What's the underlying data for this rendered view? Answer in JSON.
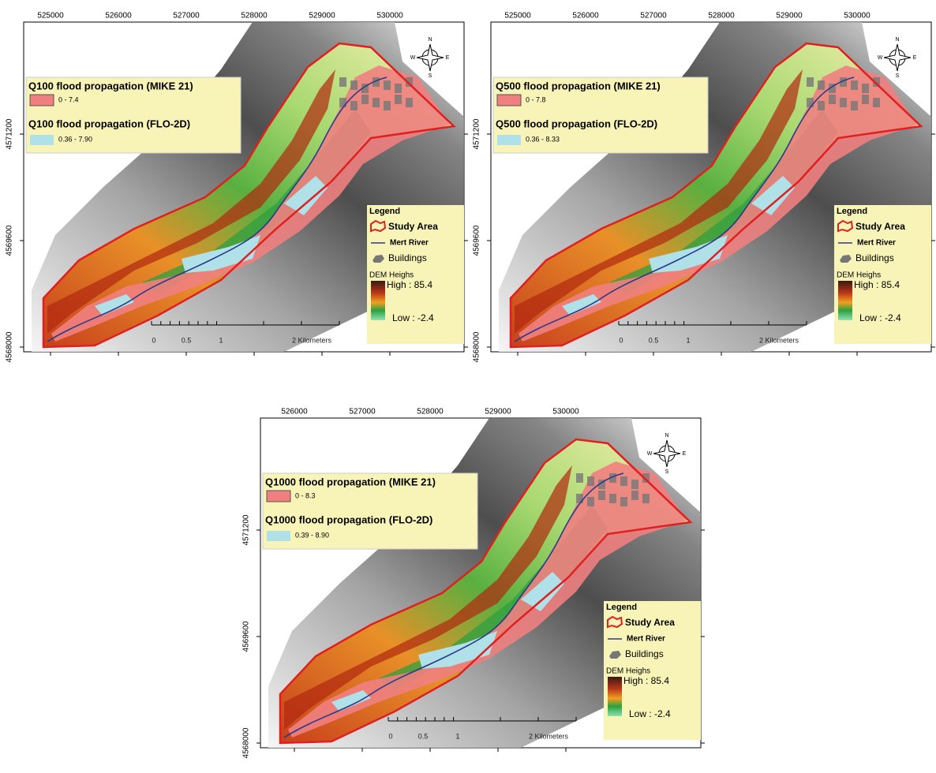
{
  "maps": [
    {
      "x_labels": [
        "525000",
        "526000",
        "527000",
        "528000",
        "529000",
        "530000"
      ],
      "y_labels": [
        "4571200",
        "4569600",
        "4568000"
      ],
      "flood_legend": {
        "mike_title": "Q100 flood propagation (MIKE 21)",
        "mike_range": "0 - 7.4",
        "flo_title": "Q100 flood propagation (FLO-2D)",
        "flo_range": "0.36 - 7.90"
      }
    },
    {
      "x_labels": [
        "525000",
        "526000",
        "527000",
        "528000",
        "529000",
        "530000"
      ],
      "y_labels": [
        "4571200",
        "4569600",
        "4568000"
      ],
      "flood_legend": {
        "mike_title": "Q500 flood propagation (MIKE 21)",
        "mike_range": "0 - 7.8",
        "flo_title": "Q500 flood propagation (FLO-2D)",
        "flo_range": "0.36 - 8.33"
      }
    },
    {
      "x_labels": [
        "526000",
        "527000",
        "528000",
        "529000",
        "530000"
      ],
      "y_labels": [
        "4571200",
        "4569600",
        "4568000"
      ],
      "flood_legend": {
        "mike_title": "Q1000 flood propagation (MIKE 21)",
        "mike_range": "0 - 8.3",
        "flo_title": "Q1000 flood propagation (FLO-2D)",
        "flo_range": "0.39 - 8.90"
      }
    }
  ],
  "legend": {
    "title": "Legend",
    "study_area": "Study Area",
    "river": "Mert River",
    "buildings": "Buildings",
    "dem": "DEM Heighs",
    "high": "High : 85.4",
    "low": "Low : -2.4"
  },
  "scale_bar": [
    "0",
    "0.5",
    "1",
    "2 Kilometers"
  ],
  "compass": [
    "N",
    "E",
    "S",
    "W"
  ]
}
